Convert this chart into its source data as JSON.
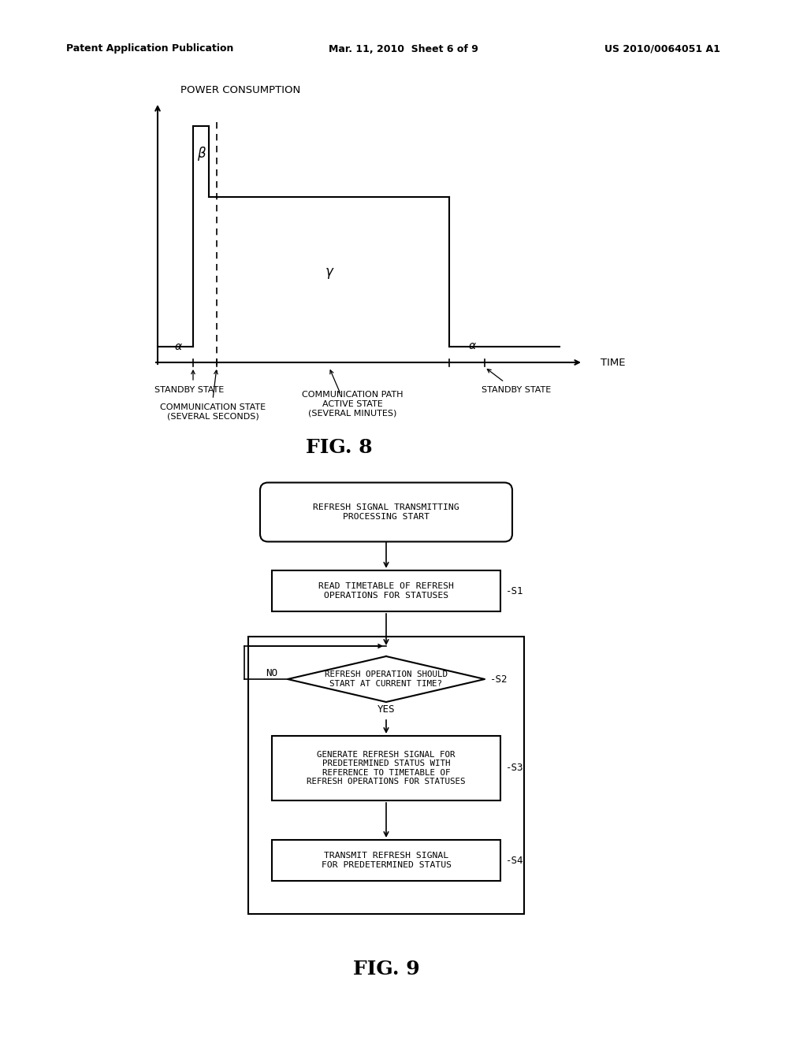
{
  "bg_color": "#ffffff",
  "text_color": "#000000",
  "header_left": "Patent Application Publication",
  "header_center": "Mar. 11, 2010  Sheet 6 of 9",
  "header_right": "US 2010/0064051 A1",
  "fig8_title": "FIG. 8",
  "fig9_title": "FIG. 9",
  "graph": {
    "ylabel": "POWER CONSUMPTION",
    "xlabel": "TIME",
    "alpha_label": "α",
    "beta_label": "β",
    "gamma_label": "γ",
    "labels": {
      "standby1": "STANDBY STATE",
      "comm_state": "COMMUNICATION STATE\n(SEVERAL SECONDS)",
      "comm_path": "COMMUNICATION PATH\nACTIVE STATE\n(SEVERAL MINUTES)",
      "standby2": "STANDBY STATE"
    }
  },
  "flowchart": {
    "start_text": "REFRESH SIGNAL TRANSMITTING\nPROCESSING START",
    "s1_text": "READ TIMETABLE OF REFRESH\nOPERATIONS FOR STATUSES",
    "s2_text": "REFRESH OPERATION SHOULD\nSTART AT CURRENT TIME?",
    "s3_text": "GENERATE REFRESH SIGNAL FOR\nPREDETERMINED STATUS WITH\nREFERENCE TO TIMETABLE OF\nREFRESH OPERATIONS FOR STATUSES",
    "s4_text": "TRANSMIT REFRESH SIGNAL\nFOR PREDETERMINED STATUS",
    "s1_label": "-S1",
    "s2_label": "-S2",
    "s3_label": "-S3",
    "s4_label": "-S4",
    "yes_label": "YES",
    "no_label": "NO"
  }
}
